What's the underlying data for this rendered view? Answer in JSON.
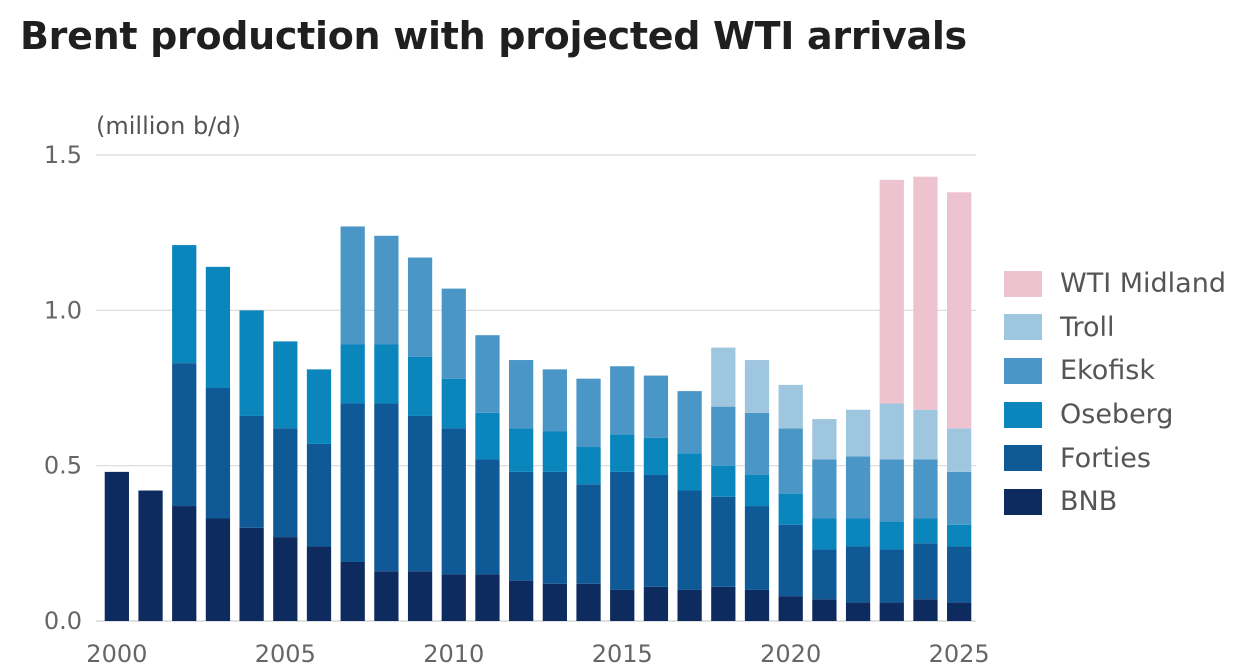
{
  "chart_data": {
    "type": "bar",
    "stacked": true,
    "title": "Brent production with projected WTI arrivals",
    "ylabel": "(million b/d)",
    "ylim": [
      0,
      1.5
    ],
    "yticks": [
      "0.0",
      "0.5",
      "1.0",
      "1.5"
    ],
    "xticks": [
      "2000",
      "2005",
      "2010",
      "2015",
      "2020",
      "2025"
    ],
    "categories": [
      2000,
      2001,
      2002,
      2003,
      2004,
      2005,
      2006,
      2007,
      2008,
      2009,
      2010,
      2011,
      2012,
      2013,
      2014,
      2015,
      2016,
      2017,
      2018,
      2019,
      2020,
      2021,
      2022,
      2023,
      2024,
      2025
    ],
    "grid": "horizontal",
    "legend_position": "right",
    "series": [
      {
        "name": "BNB",
        "color": "#0d2b5e",
        "values": [
          0.48,
          0.42,
          0.37,
          0.33,
          0.3,
          0.27,
          0.24,
          0.19,
          0.16,
          0.16,
          0.15,
          0.15,
          0.13,
          0.12,
          0.12,
          0.1,
          0.11,
          0.1,
          0.11,
          0.1,
          0.08,
          0.07,
          0.06,
          0.06,
          0.07,
          0.06
        ]
      },
      {
        "name": "Forties",
        "color": "#0f5a96",
        "values": [
          0,
          0,
          0.46,
          0.42,
          0.36,
          0.35,
          0.33,
          0.51,
          0.54,
          0.5,
          0.47,
          0.37,
          0.35,
          0.36,
          0.32,
          0.38,
          0.36,
          0.32,
          0.29,
          0.27,
          0.23,
          0.16,
          0.18,
          0.17,
          0.18,
          0.18
        ]
      },
      {
        "name": "Oseberg",
        "color": "#0b86bd",
        "values": [
          0,
          0,
          0.38,
          0.39,
          0.34,
          0.28,
          0.24,
          0.19,
          0.19,
          0.19,
          0.16,
          0.15,
          0.14,
          0.13,
          0.12,
          0.12,
          0.12,
          0.12,
          0.1,
          0.1,
          0.1,
          0.1,
          0.09,
          0.09,
          0.08,
          0.07
        ]
      },
      {
        "name": "Ekofisk",
        "color": "#4a97c7",
        "values": [
          0,
          0,
          0,
          0,
          0,
          0,
          0,
          0.38,
          0.35,
          0.32,
          0.29,
          0.25,
          0.22,
          0.2,
          0.22,
          0.22,
          0.2,
          0.2,
          0.19,
          0.2,
          0.21,
          0.19,
          0.2,
          0.2,
          0.19,
          0.17
        ]
      },
      {
        "name": "Troll",
        "color": "#9ec6de",
        "values": [
          0,
          0,
          0,
          0,
          0,
          0,
          0,
          0,
          0,
          0,
          0,
          0,
          0,
          0,
          0,
          0,
          0,
          0,
          0.19,
          0.17,
          0.14,
          0.13,
          0.15,
          0.18,
          0.16,
          0.14
        ]
      },
      {
        "name": "WTI Midland",
        "color": "#ecc3cf",
        "values": [
          0,
          0,
          0,
          0,
          0,
          0,
          0,
          0,
          0,
          0,
          0,
          0,
          0,
          0,
          0,
          0,
          0,
          0,
          0,
          0,
          0,
          0,
          0,
          0.72,
          0.75,
          0.76
        ]
      }
    ]
  }
}
